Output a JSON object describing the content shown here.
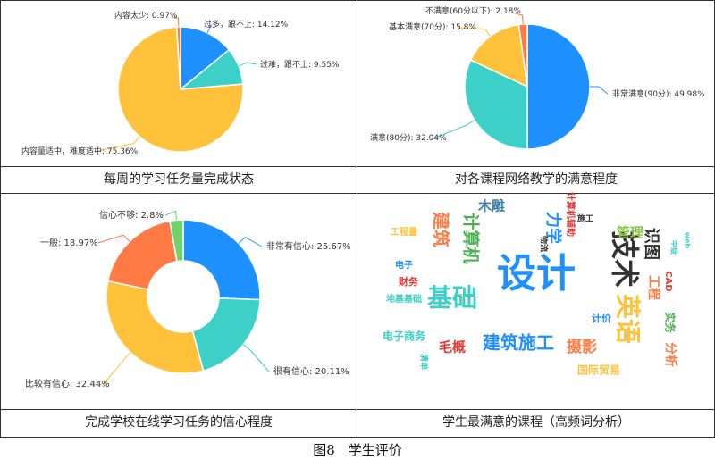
{
  "figure": {
    "title": "图8　学生评价"
  },
  "chart_data": [
    {
      "type": "pie",
      "caption": "每周的学习任务量完成状态",
      "slices": [
        {
          "label": "过多，跟不上: 14.12%",
          "value": 14.12,
          "color": "#1e90ff"
        },
        {
          "label": "过难，跟不上: 9.55%",
          "value": 9.55,
          "color": "#3dd0c8"
        },
        {
          "label": "内容量适中，难度适中: 75.36%",
          "value": 75.36,
          "color": "#ffc23a"
        },
        {
          "label": "内容太少: 0.97%",
          "value": 0.97,
          "color": "#ff7a45"
        }
      ]
    },
    {
      "type": "pie",
      "caption": "对各课程网络教学的满意程度",
      "slices": [
        {
          "label": "非常满意(90分): 49.98%",
          "value": 49.98,
          "color": "#1e90ff"
        },
        {
          "label": "满意(80分): 32.04%",
          "value": 32.04,
          "color": "#3dd0c8"
        },
        {
          "label": "基本满意(70分): 15.8%",
          "value": 15.8,
          "color": "#ffc23a"
        },
        {
          "label": "不满意(60分以下): 2.18%",
          "value": 2.18,
          "color": "#ff7a45"
        }
      ]
    },
    {
      "type": "pie",
      "donut": true,
      "caption": "完成学校在线学习任务的信心程度",
      "slices": [
        {
          "label": "非常有信心: 25.67%",
          "value": 25.67,
          "color": "#1e90ff"
        },
        {
          "label": "很有信心: 20.11%",
          "value": 20.11,
          "color": "#3dd0c8"
        },
        {
          "label": "比较有信心: 32.44%",
          "value": 32.44,
          "color": "#ffc23a"
        },
        {
          "label": "一般: 18.97%",
          "value": 18.97,
          "color": "#ff7a45"
        },
        {
          "label": "信心不够: 2.8%",
          "value": 2.8,
          "color": "#6fd36a"
        }
      ]
    },
    {
      "type": "wordcloud",
      "caption": "学生最满意的课程（高频词分析）",
      "words": [
        {
          "text": "设计",
          "color": "#1e90ff"
        },
        {
          "text": "技术",
          "color": "#333333"
        },
        {
          "text": "建筑施工",
          "color": "#1e90ff"
        },
        {
          "text": "基础",
          "color": "#3dd0c8"
        },
        {
          "text": "英语",
          "color": "#ffc23a"
        },
        {
          "text": "建筑",
          "color": "#ff7a45"
        },
        {
          "text": "计算机",
          "color": "#4caf50"
        },
        {
          "text": "木雕",
          "color": "#3d7ea6"
        },
        {
          "text": "力学",
          "color": "#1e90ff"
        },
        {
          "text": "摄影",
          "color": "#ff7a45"
        },
        {
          "text": "毛概",
          "color": "#e53935"
        },
        {
          "text": "管理",
          "color": "#8bc34a"
        },
        {
          "text": "识图",
          "color": "#333333"
        },
        {
          "text": "工程",
          "color": "#ff7a45"
        },
        {
          "text": "电子商务",
          "color": "#3dd0c8"
        },
        {
          "text": "国际贸易",
          "color": "#ffc23a"
        },
        {
          "text": "计价",
          "color": "#1e90ff"
        },
        {
          "text": "实务",
          "color": "#4caf50"
        },
        {
          "text": "分析",
          "color": "#ff7a45"
        },
        {
          "text": "CAD",
          "color": "#e53935"
        },
        {
          "text": "财务",
          "color": "#e53935"
        },
        {
          "text": "电子",
          "color": "#1e90ff"
        },
        {
          "text": "工程量",
          "color": "#ffc23a"
        },
        {
          "text": "地基基础",
          "color": "#3dd0c8"
        },
        {
          "text": "计算机辅助",
          "color": "#e53935"
        },
        {
          "text": "施工",
          "color": "#333333"
        },
        {
          "text": "物流",
          "color": "#333333"
        },
        {
          "text": "中级",
          "color": "#3dd0c8"
        },
        {
          "text": "web",
          "color": "#3dd0c8"
        },
        {
          "text": "清单",
          "color": "#3dd0c8"
        }
      ]
    }
  ]
}
